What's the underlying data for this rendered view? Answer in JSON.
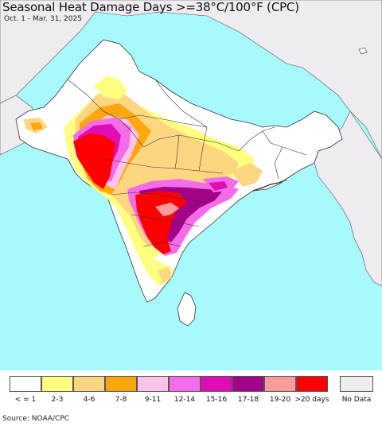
{
  "title": "Seasonal Heat Damage Days >=38°C/100°F (CPC)",
  "subtitle": "Oct. 1 - Mar. 31, 2025",
  "source": "Source: NOAA/CPC",
  "colors": {
    "ocean": "#a8f9fb",
    "outside_land": "#efebf0",
    "background_land": "#ffffff",
    "borders": "#333333"
  },
  "legend": {
    "items": [
      {
        "label": "< = 1",
        "color": "#ffffff"
      },
      {
        "label": "2-3",
        "color": "#ffff80"
      },
      {
        "label": "4-6",
        "color": "#fdd681"
      },
      {
        "label": "7-8",
        "color": "#fda60e"
      },
      {
        "label": "9-11",
        "color": "#fec3e8"
      },
      {
        "label": "12-14",
        "color": "#f46ce7"
      },
      {
        "label": "15-16",
        "color": "#e00cb5"
      },
      {
        "label": "17-18",
        "color": "#a20487"
      },
      {
        "label": "19-20",
        "color": "#fe9c9c"
      },
      {
        "label": ">20 days",
        "color": "#ff0000"
      }
    ],
    "no_data": {
      "label": "No Data",
      "color": "#efebf0"
    }
  }
}
